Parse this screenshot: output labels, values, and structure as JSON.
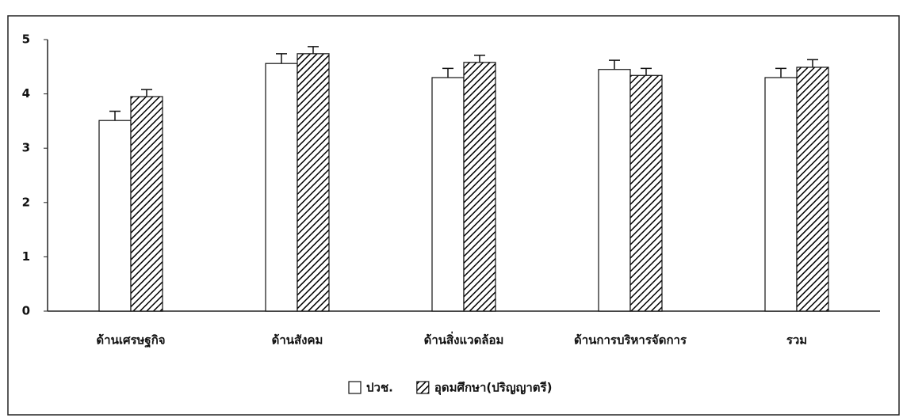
{
  "chart_data": {
    "type": "bar",
    "categories": [
      "ด้านเศรษฐกิจ",
      "ด้านสังคม",
      "ด้านสิ่งแวดล้อม",
      "ด้านการบริหารจัดการ",
      "รวม"
    ],
    "series": [
      {
        "name": "ปวช.",
        "color": "#ffffff",
        "hatch": false,
        "values": [
          3.51,
          4.56,
          4.3,
          4.45,
          4.3
        ],
        "errors": [
          0.17,
          0.18,
          0.17,
          0.17,
          0.17
        ]
      },
      {
        "name": "อุดมศึกษา(ปริญญาตรี)",
        "color": "#ffffff",
        "hatch": true,
        "values": [
          3.95,
          4.74,
          4.58,
          4.34,
          4.49
        ],
        "errors": [
          0.13,
          0.13,
          0.13,
          0.13,
          0.14
        ]
      }
    ],
    "ylim": [
      0,
      5
    ],
    "yticks": [
      0,
      1,
      2,
      3,
      4,
      5
    ],
    "grid": false,
    "legend": "bottom"
  }
}
